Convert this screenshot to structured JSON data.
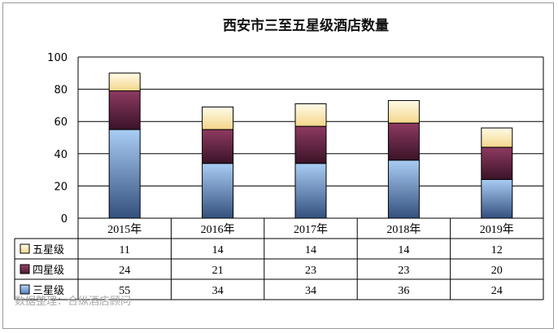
{
  "chart_data": {
    "type": "bar",
    "stacked": true,
    "title": "西安市三至五星级酒店数量",
    "categories": [
      "2015年",
      "2016年",
      "2017年",
      "2018年",
      "2019年"
    ],
    "series": [
      {
        "name": "三星级",
        "values": [
          55,
          34,
          34,
          36,
          24
        ],
        "color": "#6f9fe0"
      },
      {
        "name": "四星级",
        "values": [
          24,
          21,
          23,
          23,
          20
        ],
        "color": "#7a2a4e"
      },
      {
        "name": "五星级",
        "values": [
          11,
          14,
          14,
          14,
          12
        ],
        "color": "#fff0b8"
      }
    ],
    "ylim": [
      0,
      100
    ],
    "yticks": [
      0,
      20,
      40,
      60,
      80,
      100
    ],
    "grid": true,
    "data_table": true,
    "source_note": "数据整理：合纵酒店顾问"
  }
}
